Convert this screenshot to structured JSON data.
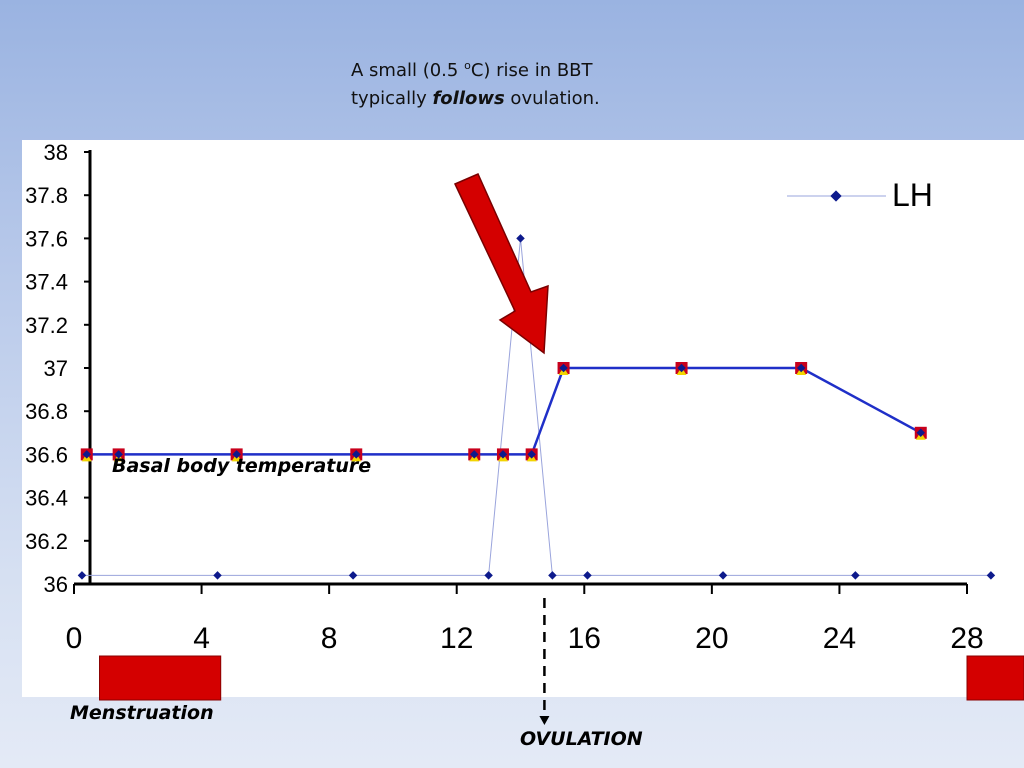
{
  "caption": {
    "line1_pre": "A small (0.5 ",
    "line1_sup": "o",
    "line1_post": "C) rise in BBT",
    "line2_pre": "typically ",
    "line2_emph": "follows",
    "line2_post": " ovulation."
  },
  "labels": {
    "bbt": "Basal body temperature",
    "menstruation": "Menstruation",
    "ovulation": "OVULATION"
  },
  "colors": {
    "bbt_line": "#1f2fc8",
    "lh_line": "#9aa4dc",
    "lh_marker": "#0d1a8c",
    "arrow": "#d40000",
    "menstruation_bar": "#d40000",
    "marker_red": "#c8001c",
    "marker_yellow": "#f2d500"
  },
  "chart_data": {
    "type": "line",
    "xlim": [
      0,
      28
    ],
    "ylim": [
      36,
      38
    ],
    "x_ticks": [
      "0",
      "4",
      "8",
      "12",
      "16",
      "20",
      "24",
      "28"
    ],
    "y_ticks": [
      "36",
      "36.2",
      "36.4",
      "36.6",
      "36.8",
      "37",
      "37.2",
      "37.4",
      "37.6",
      "37.8",
      "38"
    ],
    "legend": {
      "position": "top-right",
      "entries": [
        "LH"
      ]
    },
    "series": [
      {
        "name": "LH",
        "x": [
          0.25,
          4.5,
          8.75,
          13,
          14,
          15,
          16.1,
          20.35,
          24.5,
          28.75
        ],
        "y": [
          36.04,
          36.04,
          36.04,
          36.04,
          37.6,
          36.04,
          36.04,
          36.04,
          36.04,
          36.04
        ]
      },
      {
        "x": [
          0.4,
          1.4,
          5.1,
          8.85,
          12.55,
          13.45,
          14.35,
          15.35,
          19.05,
          22.8,
          26.55
        ],
        "y": [
          36.6,
          36.6,
          36.6,
          36.6,
          36.6,
          36.6,
          36.6,
          37,
          37,
          37,
          36.7
        ]
      }
    ],
    "annotations": {
      "ovulation_day": 14.75,
      "menstruation_periods": [
        [
          0.8,
          4.6
        ],
        [
          28,
          29.8
        ]
      ]
    }
  }
}
